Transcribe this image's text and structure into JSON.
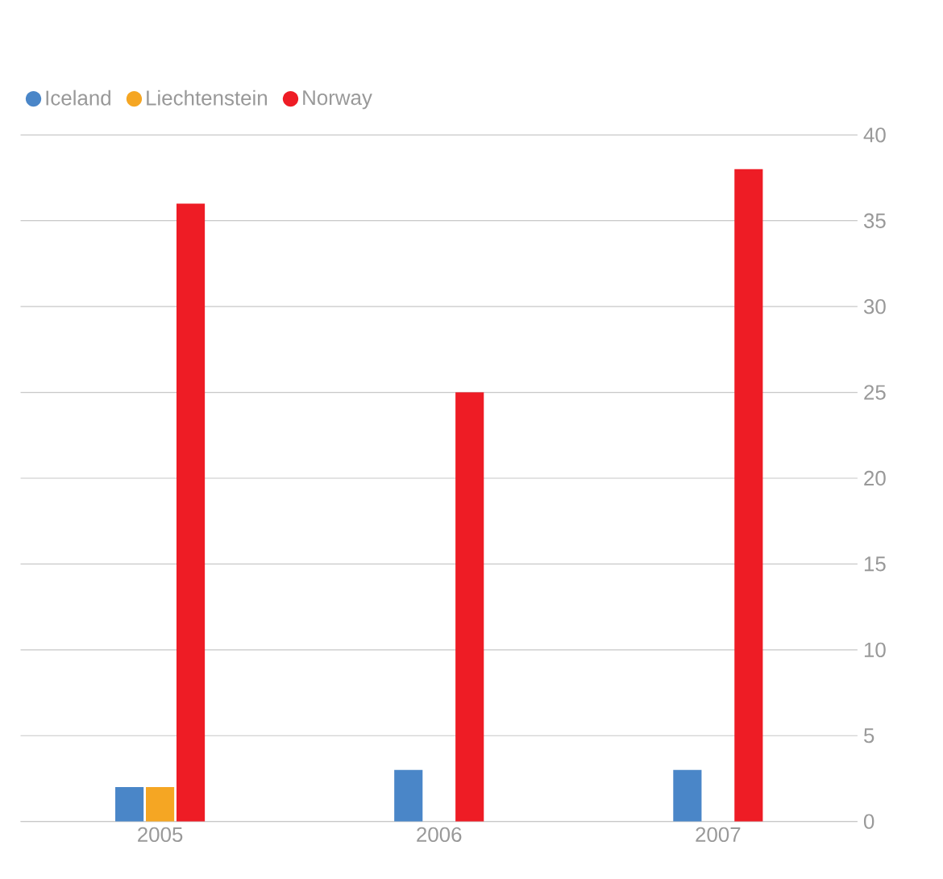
{
  "chart_data": {
    "type": "bar",
    "categories": [
      "2005",
      "2006",
      "2007"
    ],
    "series": [
      {
        "name": "Iceland",
        "color": "#4a86c8",
        "values": [
          2,
          3,
          3
        ]
      },
      {
        "name": "Liechtenstein",
        "color": "#f5a623",
        "values": [
          2,
          null,
          null
        ]
      },
      {
        "name": "Norway",
        "color": "#ee1c25",
        "values": [
          36,
          25,
          38
        ]
      }
    ],
    "ylim": [
      0,
      40
    ],
    "yticks": [
      0,
      5,
      10,
      15,
      20,
      25,
      30,
      35,
      40
    ],
    "grid": "y",
    "legend": "top left"
  }
}
